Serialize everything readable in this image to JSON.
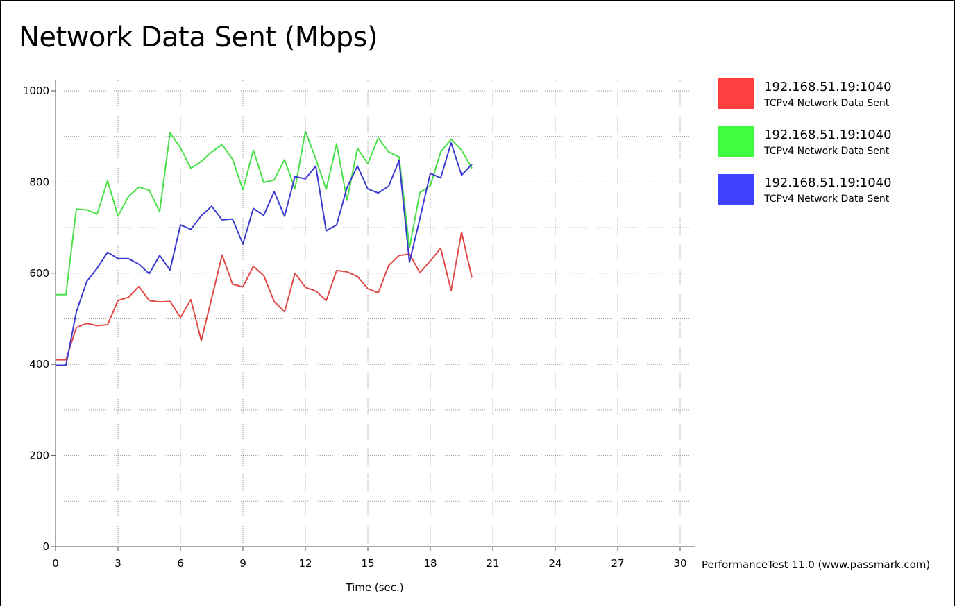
{
  "chart_data": {
    "type": "line",
    "title": "Network Data Sent (Mbps)",
    "xlabel": "Time (sec.)",
    "ylabel": "",
    "xlim": [
      0,
      30
    ],
    "ylim": [
      0,
      1000
    ],
    "x_ticks": [
      0,
      3,
      6,
      9,
      12,
      15,
      18,
      21,
      24,
      27,
      30
    ],
    "y_ticks": [
      0,
      200,
      400,
      600,
      800,
      1000
    ],
    "grid": true,
    "legend_position": "right",
    "x": [
      0,
      0.5,
      1,
      1.5,
      2,
      2.5,
      3,
      3.5,
      4,
      4.5,
      5,
      5.5,
      6,
      6.5,
      7,
      7.5,
      8,
      8.5,
      9,
      9.5,
      10,
      10.5,
      11,
      11.5,
      12,
      12.5,
      13,
      13.5,
      14,
      14.5,
      15,
      15.5,
      16,
      16.5,
      17,
      17.5,
      18,
      18.5,
      19,
      19.5,
      20
    ],
    "series": [
      {
        "name": "192.168.51.19:1040",
        "description": "TCPv4 Network Data Sent",
        "color": "#ff4040",
        "line_color": "#e04848",
        "values": [
          410,
          410,
          481,
          490,
          485,
          487,
          540,
          547,
          571,
          540,
          537,
          538,
          503,
          542,
          452,
          545,
          640,
          576,
          570,
          615,
          595,
          538,
          515,
          600,
          569,
          561,
          540,
          606,
          603,
          593,
          566,
          557,
          617,
          639,
          642,
          601,
          627,
          655,
          562,
          690,
          590
        ]
      },
      {
        "name": "192.168.51.19:1040",
        "description": "TCPv4 Network Data Sent",
        "color": "#40ff40",
        "line_color": "#48e048",
        "values": [
          553,
          553,
          741,
          739,
          730,
          803,
          725,
          768,
          789,
          782,
          735,
          908,
          875,
          830,
          845,
          866,
          882,
          850,
          783,
          870,
          799,
          805,
          849,
          785,
          911,
          851,
          784,
          884,
          760,
          874,
          840,
          897,
          866,
          855,
          656,
          777,
          792,
          866,
          894,
          870,
          830
        ]
      },
      {
        "name": "192.168.51.19:1040",
        "description": "TCPv4 Network Data Sent",
        "color": "#4040ff",
        "line_color": "#3a3ad0",
        "values": [
          398,
          398,
          515,
          582,
          611,
          646,
          632,
          632,
          620,
          599,
          639,
          607,
          706,
          696,
          726,
          747,
          717,
          719,
          664,
          742,
          727,
          779,
          725,
          812,
          807,
          835,
          693,
          706,
          788,
          835,
          785,
          776,
          791,
          847,
          624,
          720,
          819,
          809,
          886,
          815,
          839
        ]
      }
    ],
    "credit": "PerformanceTest 11.0 (www.passmark.com)"
  }
}
